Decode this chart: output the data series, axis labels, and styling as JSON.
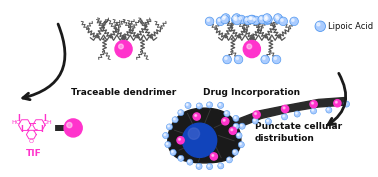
{
  "bg_color": "#ffffff",
  "label_traceable": "Traceable dendrimer",
  "label_drug": "Drug Incorporation",
  "label_lipoic": "Lipoic Acid",
  "label_tif": "TIF",
  "label_punctate": "Punctate cellular\ndistribution",
  "magenta_color": "#FF33CC",
  "blue_color": "#5599EE",
  "blue_light": "#AACCFF",
  "dark_color": "#111111",
  "branch_color": "#555555",
  "arrow_color": "#1a1a1a",
  "cell_dark": "#2a2a2a",
  "cell_body_dark": "#1a1a1a",
  "nucleus_color": "#1144BB",
  "label_fontsize": 6.5,
  "small_fontsize": 6,
  "fig_width": 3.78,
  "fig_height": 1.77,
  "dpi": 100
}
